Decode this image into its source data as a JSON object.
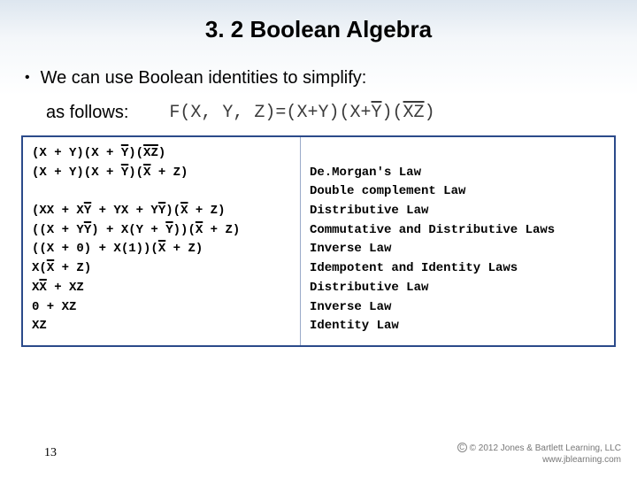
{
  "title": "3. 2 Boolean Algebra",
  "bullet": "We can use Boolean identities to simplify:",
  "as_follows": "as follows:",
  "formula": {
    "lhs": "F(X, Y, Z)",
    "eq": "=",
    "p1_open": "(",
    "p1_body": "X+Y",
    "p1_close": ")",
    "p2_open": "(",
    "p2_x": "X+",
    "p2_ybar": "Y",
    "p2_close": ")",
    "p3_open": "(",
    "p3_body": "XZ",
    "p3_close": ")"
  },
  "steps": [
    {
      "pre": "(X + Y)(X + ",
      "bar": "Y",
      "mid": ")(",
      "bar2": "XZ",
      "post": ")"
    },
    {
      "pre": "(X + Y)(X + ",
      "bar": "Y",
      "mid": ")(",
      "bar2": "X",
      "post": " + Z)"
    },
    {
      "blank": true
    },
    {
      "pre": "(XX + X",
      "bar": "Y",
      "mid": " + YX + Y",
      "bar2": "Y",
      "mid2": ")(",
      "bar3": "X",
      "post": " + Z)"
    },
    {
      "pre": "((X + Y",
      "bar": "Y",
      "mid": ") + X(Y + ",
      "bar2": "Y",
      "mid2": "))(",
      "bar3": "X",
      "post": " + Z)"
    },
    {
      "pre": "((X + 0) + X(1))(",
      "bar": "X",
      "post": " + Z)"
    },
    {
      "pre": "X(",
      "bar": "X",
      "post": " + Z)"
    },
    {
      "pre": "X",
      "bar": "X",
      "post": " + XZ"
    },
    {
      "plain": "0 + XZ"
    },
    {
      "plain": "XZ"
    }
  ],
  "laws": [
    "",
    "De.Morgan's Law",
    "Double complement Law",
    "Distributive Law",
    "Commutative and Distributive Laws",
    "Inverse Law",
    "Idempotent and Identity Laws",
    "Distributive Law",
    "Inverse Law",
    "Identity Law"
  ],
  "page_number": "13",
  "copyright": {
    "line1": "© 2012 Jones & Bartlett Learning, LLC",
    "line2": "www.jblearning.com"
  },
  "colors": {
    "table_border": "#2b4a8a",
    "gradient_top": "#dde6ef"
  }
}
